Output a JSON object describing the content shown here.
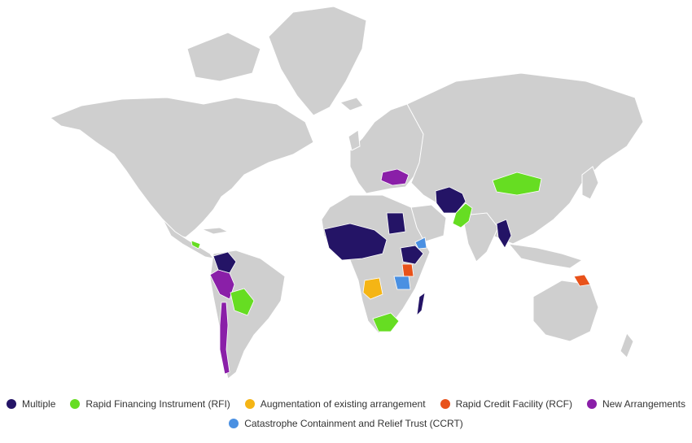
{
  "legend": {
    "items": [
      {
        "key": "multiple",
        "label": "Multiple",
        "color": "#241466"
      },
      {
        "key": "rfi",
        "label": "Rapid Financing Instrument (RFI)",
        "color": "#66dd22"
      },
      {
        "key": "augmentation",
        "label": "Augmentation of existing arrangement",
        "color": "#f5b515"
      },
      {
        "key": "rcf",
        "label": "Rapid Credit Facility (RCF)",
        "color": "#e8521a"
      },
      {
        "key": "new",
        "label": "New Arrangements",
        "color": "#8a1fa8"
      },
      {
        "key": "ccrt",
        "label": "Catastrophe Containment and Relief Trust (CCRT)",
        "color": "#4a90e2"
      }
    ]
  },
  "map": {
    "land_color": "#cfcfcf",
    "highlighted": [
      {
        "name": "ukraine",
        "category": "new"
      },
      {
        "name": "afghanistan",
        "category": "multiple"
      },
      {
        "name": "pakistan",
        "category": "rfi"
      },
      {
        "name": "mongolia",
        "category": "rfi"
      },
      {
        "name": "myanmar",
        "category": "multiple"
      },
      {
        "name": "papua-new-guinea",
        "category": "rcf"
      },
      {
        "name": "colombia",
        "category": "multiple"
      },
      {
        "name": "peru",
        "category": "new"
      },
      {
        "name": "chile",
        "category": "new"
      },
      {
        "name": "bolivia",
        "category": "rfi"
      },
      {
        "name": "egypt",
        "category": "multiple"
      },
      {
        "name": "west-africa",
        "category": "multiple"
      },
      {
        "name": "angola",
        "category": "augmentation"
      },
      {
        "name": "south-africa",
        "category": "rfi"
      },
      {
        "name": "ethiopia",
        "category": "multiple"
      },
      {
        "name": "kenya",
        "category": "rcf"
      },
      {
        "name": "tanzania",
        "category": "ccrt"
      },
      {
        "name": "madagascar",
        "category": "multiple"
      },
      {
        "name": "somalia-djibouti",
        "category": "ccrt"
      },
      {
        "name": "central-america",
        "category": "rfi"
      }
    ]
  }
}
